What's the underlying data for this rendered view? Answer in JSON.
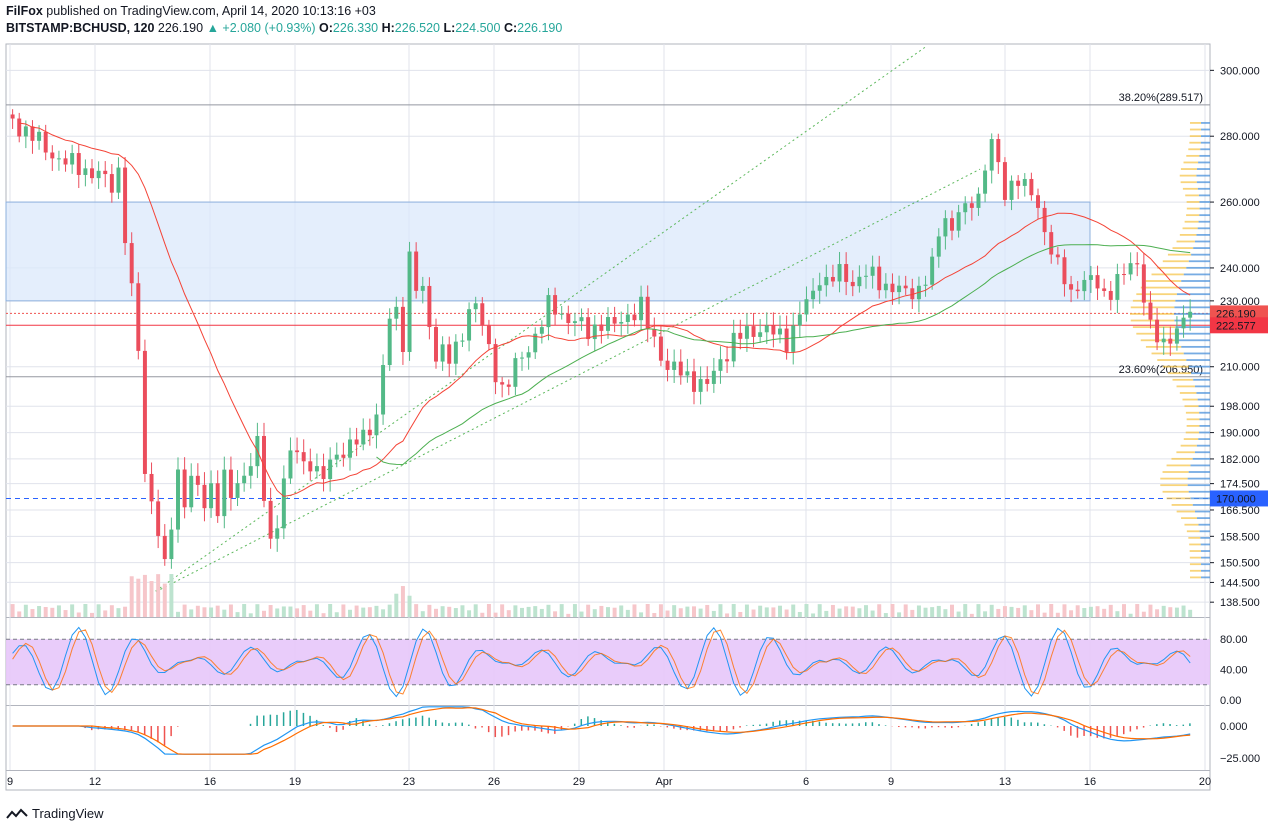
{
  "header": {
    "author": "FilFox",
    "published_text": "published on TradingView.com, April 14, 2020 10:13:16 +03",
    "symbol": "BITSTAMP:BCHUSD, 120",
    "last": "226.190",
    "change_arrow": "▲",
    "change": "+2.080 (+0.93%)",
    "open_label": "O:",
    "open": "226.330",
    "high_label": "H:",
    "high": "226.520",
    "low_label": "L:",
    "low": "224.500",
    "close_label": "C:",
    "close": "226.190",
    "up_color": "#26a69a"
  },
  "footer": {
    "brand": "TradingView",
    "logo_icon": "tradingview-logo-icon"
  },
  "chart_data": [
    {
      "type": "candlestick",
      "ylim": [
        134,
        308
      ],
      "y_ticks": [
        "300.000",
        "280.000",
        "260.000",
        "240.000",
        "230.000",
        "210.000",
        "198.000",
        "190.000",
        "182.000",
        "174.500",
        "166.500",
        "158.500",
        "150.500",
        "144.500",
        "138.500"
      ],
      "x_labels": [
        "9",
        "12",
        "16",
        "19",
        "23",
        "26",
        "29",
        "Apr",
        "6",
        "9",
        "13",
        "16",
        "20"
      ],
      "fib_levels": [
        {
          "label": "38.20%(289.517)",
          "value": 289.517
        },
        {
          "label": "23.60%(206.950)",
          "value": 206.95
        }
      ],
      "price_labels": [
        {
          "text": "226.190",
          "value": 226.19,
          "color": "#ef5350"
        },
        {
          "text": "222.577",
          "value": 222.577,
          "color": "#f23645"
        },
        {
          "text": "170.000",
          "value": 170.0,
          "color": "#2962ff"
        }
      ],
      "supply_zone": [
        230,
        260
      ],
      "horizontal_line": 170.0,
      "close_path": [
        [
          0,
          285
        ],
        [
          3,
          282
        ],
        [
          6,
          276
        ],
        [
          9,
          272
        ],
        [
          12,
          270
        ],
        [
          14,
          268
        ],
        [
          16,
          265
        ],
        [
          17,
          270
        ],
        [
          18,
          250
        ],
        [
          19,
          232
        ],
        [
          20,
          215
        ],
        [
          21,
          178
        ],
        [
          22,
          170
        ],
        [
          23,
          160
        ],
        [
          24,
          148
        ],
        [
          25,
          162
        ],
        [
          26,
          178
        ],
        [
          27,
          170
        ],
        [
          28,
          176
        ],
        [
          29,
          172
        ],
        [
          30,
          168
        ],
        [
          31,
          174
        ],
        [
          32,
          168
        ],
        [
          33,
          176
        ],
        [
          34,
          170
        ],
        [
          35,
          174
        ],
        [
          36,
          178
        ],
        [
          37,
          182
        ],
        [
          38,
          186
        ],
        [
          39,
          170
        ],
        [
          40,
          156
        ],
        [
          41,
          164
        ],
        [
          42,
          176
        ],
        [
          43,
          183
        ],
        [
          44,
          184
        ],
        [
          45,
          180
        ],
        [
          46,
          182
        ],
        [
          47,
          178
        ],
        [
          48,
          176
        ],
        [
          50,
          184
        ],
        [
          52,
          186
        ],
        [
          54,
          188
        ],
        [
          56,
          196
        ],
        [
          57,
          210
        ],
        [
          58,
          224
        ],
        [
          59,
          226
        ],
        [
          60,
          218
        ],
        [
          61,
          244
        ],
        [
          62,
          234
        ],
        [
          63,
          232
        ],
        [
          64,
          222
        ],
        [
          65,
          214
        ],
        [
          66,
          216
        ],
        [
          67,
          212
        ],
        [
          68,
          214
        ],
        [
          69,
          220
        ],
        [
          70,
          228
        ],
        [
          71,
          230
        ],
        [
          72,
          222
        ],
        [
          73,
          214
        ],
        [
          74,
          208
        ],
        [
          75,
          204
        ],
        [
          76,
          206
        ],
        [
          77,
          210
        ],
        [
          78,
          212
        ],
        [
          79,
          216
        ],
        [
          80,
          220
        ],
        [
          81,
          224
        ],
        [
          82,
          228
        ],
        [
          84,
          226
        ],
        [
          86,
          224
        ],
        [
          88,
          220
        ],
        [
          90,
          224
        ],
        [
          92,
          222
        ],
        [
          94,
          226
        ],
        [
          96,
          228
        ],
        [
          97,
          222
        ],
        [
          98,
          218
        ],
        [
          99,
          214
        ],
        [
          100,
          210
        ],
        [
          102,
          208
        ],
        [
          104,
          206
        ],
        [
          106,
          204
        ],
        [
          108,
          212
        ],
        [
          110,
          218
        ],
        [
          112,
          220
        ],
        [
          114,
          222
        ],
        [
          116,
          220
        ],
        [
          118,
          218
        ],
        [
          119,
          222
        ],
        [
          120,
          226
        ],
        [
          122,
          232
        ],
        [
          123,
          238
        ],
        [
          124,
          236
        ],
        [
          126,
          238
        ],
        [
          128,
          236
        ],
        [
          130,
          238
        ],
        [
          132,
          236
        ],
        [
          134,
          234
        ],
        [
          136,
          232
        ],
        [
          138,
          234
        ],
        [
          140,
          240
        ],
        [
          141,
          250
        ],
        [
          142,
          256
        ],
        [
          143,
          252
        ],
        [
          144,
          258
        ],
        [
          145,
          256
        ],
        [
          146,
          260
        ],
        [
          147,
          262
        ],
        [
          148,
          272
        ],
        [
          149,
          278
        ],
        [
          150,
          270
        ],
        [
          151,
          262
        ],
        [
          152,
          266
        ],
        [
          153,
          268
        ],
        [
          154,
          264
        ],
        [
          155,
          262
        ],
        [
          156,
          258
        ],
        [
          157,
          252
        ],
        [
          158,
          246
        ],
        [
          159,
          240
        ],
        [
          160,
          236
        ],
        [
          161,
          232
        ],
        [
          162,
          236
        ],
        [
          164,
          236
        ],
        [
          166,
          232
        ],
        [
          168,
          236
        ],
        [
          170,
          240
        ],
        [
          171,
          242
        ],
        [
          172,
          232
        ],
        [
          173,
          222
        ],
        [
          174,
          218
        ],
        [
          175,
          216
        ],
        [
          176,
          220
        ],
        [
          177,
          222
        ],
        [
          178,
          224
        ],
        [
          179,
          226.19
        ]
      ],
      "stoch_levels": [
        80,
        20
      ],
      "stoch_ticks": [
        "80.00",
        "40.00",
        "0.00"
      ],
      "macd_ticks": [
        "0.000",
        "−25.000"
      ]
    }
  ]
}
